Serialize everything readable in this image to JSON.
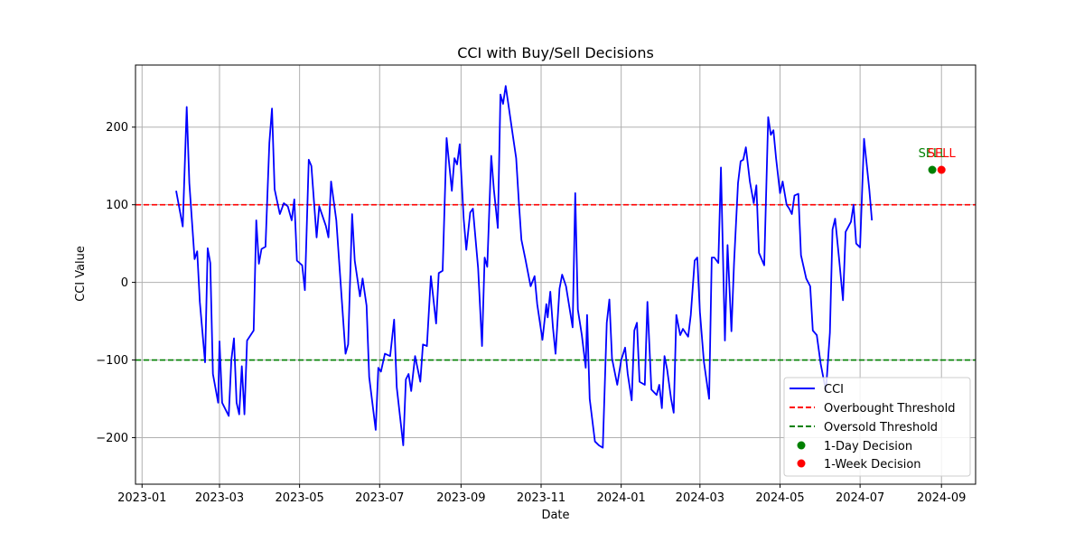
{
  "chart_data": {
    "type": "line",
    "title": "CCI with Buy/Sell Decisions",
    "xlabel": "Date",
    "ylabel": "CCI Value",
    "xlim": [
      "2022-12-27",
      "2024-09-27"
    ],
    "ylim": [
      -260,
      280
    ],
    "grid": true,
    "legend_position": "bottom-right",
    "x_ticks": [
      "2023-01-01",
      "2023-03-01",
      "2023-05-01",
      "2023-07-01",
      "2023-09-01",
      "2023-11-01",
      "2024-01-01",
      "2024-03-01",
      "2024-05-01",
      "2024-07-01",
      "2024-09-01"
    ],
    "x_tick_labels": [
      "2023-01",
      "2023-03",
      "2023-05",
      "2023-07",
      "2023-09",
      "2023-11",
      "2024-01",
      "2024-03",
      "2024-05",
      "2024-07",
      "2024-09"
    ],
    "y_ticks": [
      -200,
      -100,
      0,
      100,
      200
    ],
    "y_tick_labels": [
      "−200",
      "−100",
      "0",
      "100",
      "200"
    ],
    "series": [
      {
        "name": "CCI",
        "color": "#0000ff",
        "points": [
          [
            "2023-01-27",
            118
          ],
          [
            "2023-02-01",
            72
          ],
          [
            "2023-02-04",
            226
          ],
          [
            "2023-02-06",
            128
          ],
          [
            "2023-02-10",
            30
          ],
          [
            "2023-02-12",
            40
          ],
          [
            "2023-02-14",
            -25
          ],
          [
            "2023-02-18",
            -103
          ],
          [
            "2023-02-20",
            44
          ],
          [
            "2023-02-22",
            25
          ],
          [
            "2023-02-24",
            -118
          ],
          [
            "2023-02-28",
            -155
          ],
          [
            "2023-03-01",
            -76
          ],
          [
            "2023-03-03",
            -155
          ],
          [
            "2023-03-08",
            -172
          ],
          [
            "2023-03-10",
            -100
          ],
          [
            "2023-03-12",
            -72
          ],
          [
            "2023-03-14",
            -155
          ],
          [
            "2023-03-16",
            -170
          ],
          [
            "2023-03-18",
            -108
          ],
          [
            "2023-03-20",
            -170
          ],
          [
            "2023-03-22",
            -75
          ],
          [
            "2023-03-27",
            -62
          ],
          [
            "2023-03-29",
            80
          ],
          [
            "2023-03-31",
            24
          ],
          [
            "2023-04-02",
            43
          ],
          [
            "2023-04-05",
            46
          ],
          [
            "2023-04-08",
            180
          ],
          [
            "2023-04-10",
            224
          ],
          [
            "2023-04-12",
            120
          ],
          [
            "2023-04-16",
            88
          ],
          [
            "2023-04-19",
            102
          ],
          [
            "2023-04-22",
            98
          ],
          [
            "2023-04-25",
            80
          ],
          [
            "2023-04-27",
            107
          ],
          [
            "2023-04-29",
            28
          ],
          [
            "2023-05-03",
            22
          ],
          [
            "2023-05-05",
            -10
          ],
          [
            "2023-05-08",
            158
          ],
          [
            "2023-05-10",
            150
          ],
          [
            "2023-05-14",
            58
          ],
          [
            "2023-05-16",
            98
          ],
          [
            "2023-05-21",
            73
          ],
          [
            "2023-05-23",
            58
          ],
          [
            "2023-05-25",
            130
          ],
          [
            "2023-05-29",
            80
          ],
          [
            "2023-06-02",
            -18
          ],
          [
            "2023-06-05",
            -92
          ],
          [
            "2023-06-07",
            -80
          ],
          [
            "2023-06-10",
            88
          ],
          [
            "2023-06-12",
            28
          ],
          [
            "2023-06-16",
            -18
          ],
          [
            "2023-06-18",
            5
          ],
          [
            "2023-06-21",
            -30
          ],
          [
            "2023-06-23",
            -122
          ],
          [
            "2023-06-28",
            -190
          ],
          [
            "2023-06-30",
            -110
          ],
          [
            "2023-07-02",
            -115
          ],
          [
            "2023-07-05",
            -92
          ],
          [
            "2023-07-09",
            -95
          ],
          [
            "2023-07-12",
            -48
          ],
          [
            "2023-07-14",
            -135
          ],
          [
            "2023-07-19",
            -210
          ],
          [
            "2023-07-21",
            -125
          ],
          [
            "2023-07-23",
            -118
          ],
          [
            "2023-07-25",
            -140
          ],
          [
            "2023-07-28",
            -95
          ],
          [
            "2023-08-01",
            -128
          ],
          [
            "2023-08-03",
            -80
          ],
          [
            "2023-08-06",
            -82
          ],
          [
            "2023-08-09",
            8
          ],
          [
            "2023-08-13",
            -53
          ],
          [
            "2023-08-15",
            12
          ],
          [
            "2023-08-18",
            15
          ],
          [
            "2023-08-21",
            186
          ],
          [
            "2023-08-25",
            118
          ],
          [
            "2023-08-27",
            160
          ],
          [
            "2023-08-29",
            152
          ],
          [
            "2023-08-31",
            178
          ],
          [
            "2023-09-03",
            82
          ],
          [
            "2023-09-05",
            42
          ],
          [
            "2023-09-08",
            90
          ],
          [
            "2023-09-10",
            95
          ],
          [
            "2023-09-14",
            18
          ],
          [
            "2023-09-17",
            -82
          ],
          [
            "2023-09-19",
            32
          ],
          [
            "2023-09-21",
            20
          ],
          [
            "2023-09-24",
            163
          ],
          [
            "2023-09-26",
            120
          ],
          [
            "2023-09-29",
            70
          ],
          [
            "2023-10-01",
            242
          ],
          [
            "2023-10-03",
            230
          ],
          [
            "2023-10-05",
            253
          ],
          [
            "2023-10-07",
            230
          ],
          [
            "2023-10-10",
            195
          ],
          [
            "2023-10-13",
            160
          ],
          [
            "2023-10-15",
            105
          ],
          [
            "2023-10-17",
            55
          ],
          [
            "2023-10-20",
            30
          ],
          [
            "2023-10-24",
            -5
          ],
          [
            "2023-10-27",
            8
          ],
          [
            "2023-10-29",
            -28
          ],
          [
            "2023-11-02",
            -74
          ],
          [
            "2023-11-05",
            -28
          ],
          [
            "2023-11-06",
            -45
          ],
          [
            "2023-11-08",
            -12
          ],
          [
            "2023-11-10",
            -58
          ],
          [
            "2023-11-12",
            -92
          ],
          [
            "2023-11-15",
            -8
          ],
          [
            "2023-11-17",
            10
          ],
          [
            "2023-11-20",
            -5
          ],
          [
            "2023-11-25",
            -58
          ],
          [
            "2023-11-27",
            115
          ],
          [
            "2023-11-29",
            -35
          ],
          [
            "2023-12-02",
            -68
          ],
          [
            "2023-12-05",
            -110
          ],
          [
            "2023-12-06",
            -42
          ],
          [
            "2023-12-08",
            -150
          ],
          [
            "2023-12-12",
            -205
          ],
          [
            "2023-12-15",
            -210
          ],
          [
            "2023-12-18",
            -213
          ],
          [
            "2023-12-21",
            -52
          ],
          [
            "2023-12-23",
            -22
          ],
          [
            "2023-12-25",
            -98
          ],
          [
            "2023-12-29",
            -132
          ],
          [
            "2024-01-01",
            -100
          ],
          [
            "2024-01-04",
            -84
          ],
          [
            "2024-01-06",
            -118
          ],
          [
            "2024-01-09",
            -152
          ],
          [
            "2024-01-11",
            -62
          ],
          [
            "2024-01-13",
            -52
          ],
          [
            "2024-01-15",
            -128
          ],
          [
            "2024-01-19",
            -132
          ],
          [
            "2024-01-21",
            -25
          ],
          [
            "2024-01-24",
            -138
          ],
          [
            "2024-01-28",
            -145
          ],
          [
            "2024-01-30",
            -132
          ],
          [
            "2024-02-01",
            -162
          ],
          [
            "2024-02-03",
            -95
          ],
          [
            "2024-02-05",
            -112
          ],
          [
            "2024-02-08",
            -150
          ],
          [
            "2024-02-10",
            -168
          ],
          [
            "2024-02-12",
            -42
          ],
          [
            "2024-02-15",
            -68
          ],
          [
            "2024-02-17",
            -60
          ],
          [
            "2024-02-21",
            -70
          ],
          [
            "2024-02-23",
            -42
          ],
          [
            "2024-02-26",
            28
          ],
          [
            "2024-02-28",
            32
          ],
          [
            "2024-03-01",
            -38
          ],
          [
            "2024-03-04",
            -102
          ],
          [
            "2024-03-08",
            -150
          ],
          [
            "2024-03-10",
            32
          ],
          [
            "2024-03-12",
            32
          ],
          [
            "2024-03-15",
            25
          ],
          [
            "2024-03-17",
            148
          ],
          [
            "2024-03-20",
            -75
          ],
          [
            "2024-03-22",
            48
          ],
          [
            "2024-03-25",
            -63
          ],
          [
            "2024-03-27",
            25
          ],
          [
            "2024-03-30",
            128
          ],
          [
            "2024-04-01",
            156
          ],
          [
            "2024-04-03",
            158
          ],
          [
            "2024-04-05",
            174
          ],
          [
            "2024-04-08",
            130
          ],
          [
            "2024-04-11",
            102
          ],
          [
            "2024-04-13",
            125
          ],
          [
            "2024-04-15",
            38
          ],
          [
            "2024-04-19",
            22
          ],
          [
            "2024-04-22",
            213
          ],
          [
            "2024-04-24",
            190
          ],
          [
            "2024-04-26",
            196
          ],
          [
            "2024-04-28",
            160
          ],
          [
            "2024-05-01",
            115
          ],
          [
            "2024-05-03",
            130
          ],
          [
            "2024-05-06",
            100
          ],
          [
            "2024-05-08",
            95
          ],
          [
            "2024-05-10",
            88
          ],
          [
            "2024-05-12",
            112
          ],
          [
            "2024-05-15",
            114
          ],
          [
            "2024-05-17",
            35
          ],
          [
            "2024-05-21",
            5
          ],
          [
            "2024-05-24",
            -5
          ],
          [
            "2024-05-26",
            -62
          ],
          [
            "2024-05-29",
            -68
          ],
          [
            "2024-06-01",
            -105
          ],
          [
            "2024-06-05",
            -140
          ],
          [
            "2024-06-08",
            -65
          ],
          [
            "2024-06-10",
            68
          ],
          [
            "2024-06-12",
            82
          ],
          [
            "2024-06-15",
            30
          ],
          [
            "2024-06-18",
            -23
          ],
          [
            "2024-06-20",
            65
          ],
          [
            "2024-06-24",
            78
          ],
          [
            "2024-06-26",
            100
          ],
          [
            "2024-06-28",
            50
          ],
          [
            "2024-07-01",
            45
          ],
          [
            "2024-07-04",
            185
          ],
          [
            "2024-07-08",
            120
          ],
          [
            "2024-07-10",
            80
          ]
        ]
      }
    ],
    "thresholds": [
      {
        "name": "Overbought Threshold",
        "value": 100,
        "color": "#ff0000",
        "style": "dashed"
      },
      {
        "name": "Oversold Threshold",
        "value": -100,
        "color": "#008000",
        "style": "dashed"
      }
    ],
    "decisions": [
      {
        "name": "1-Day Decision",
        "date": "2024-08-25",
        "value": 145,
        "label": "SELL",
        "color": "#008000"
      },
      {
        "name": "1-Week Decision",
        "date": "2024-09-01",
        "value": 145,
        "label": "SELL",
        "color": "#ff0000"
      }
    ]
  }
}
